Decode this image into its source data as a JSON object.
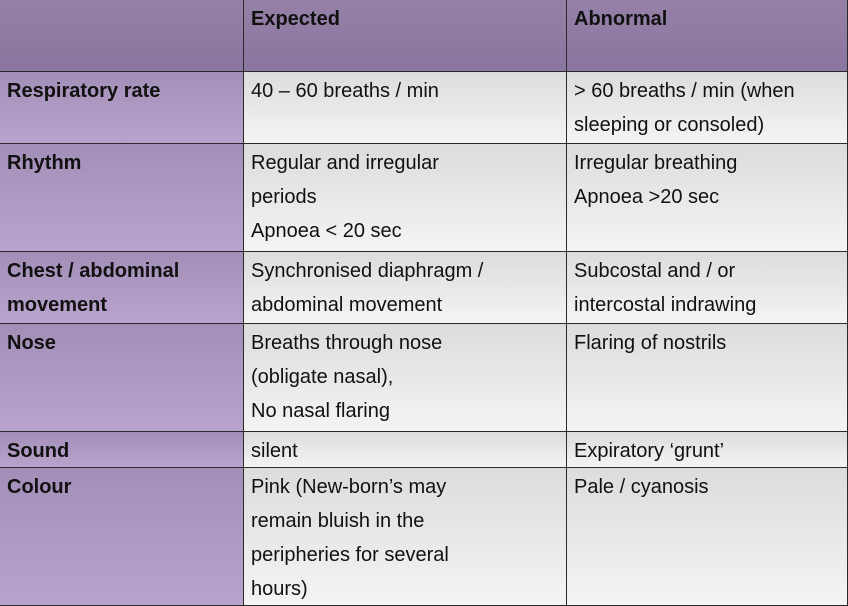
{
  "header": {
    "columns": [
      "Expected",
      "Abnormal"
    ]
  },
  "rows": [
    {
      "label": [
        "Respiratory rate"
      ],
      "expected": [
        "40 – 60 breaths / min"
      ],
      "abnormal": [
        "> 60 breaths / min (when",
        "sleeping or consoled)"
      ]
    },
    {
      "label": [
        "Rhythm"
      ],
      "expected": [
        "Regular and irregular",
        "periods",
        "Apnoea < 20 sec"
      ],
      "abnormal": [
        "Irregular breathing",
        "Apnoea >20 sec"
      ]
    },
    {
      "label": [
        "Chest / abdominal",
        "movement"
      ],
      "expected": [
        "Synchronised diaphragm /",
        "abdominal movement"
      ],
      "abnormal": [
        "Subcostal and / or",
        "intercostal indrawing"
      ]
    },
    {
      "label": [
        "Nose"
      ],
      "expected": [
        "Breaths through nose",
        "(obligate nasal),",
        "No nasal flaring"
      ],
      "abnormal": [
        "Flaring of nostrils"
      ]
    },
    {
      "label": [
        "Sound"
      ],
      "expected": [
        "silent"
      ],
      "abnormal": [
        "Expiratory ‘grunt’"
      ]
    },
    {
      "label": [
        "Colour"
      ],
      "expected": [
        "Pink (New-born’s may",
        "remain bluish in the",
        "peripheries for several",
        "hours)"
      ],
      "abnormal": [
        "Pale / cyanosis"
      ]
    }
  ]
}
